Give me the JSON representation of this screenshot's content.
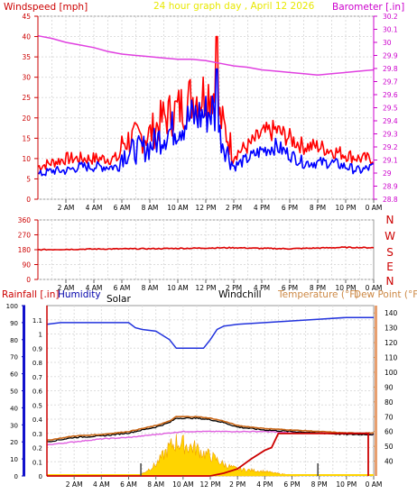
{
  "header": {
    "title": "24 hour graph day , April 12 2026",
    "left_label": "Windspeed [mph]",
    "right_label": "Barometer [.in]"
  },
  "direction_panel": {
    "letters": [
      "N",
      "W",
      "S",
      "E",
      "N"
    ]
  },
  "bottom_header": {
    "rainfall_label": "Rainfall [.in]",
    "humidity_label": "Humidity",
    "solar_label": "Solar",
    "windchill_label": "Windchill",
    "temperature_label": "Temperature (°F)",
    "dewpoint_label": "Dew Point (°F)"
  },
  "colors": {
    "windspeed": "#ff0000",
    "windgust": "#0000ff",
    "barometer": "#e040e0",
    "direction": "#dd0000",
    "humidity": "#2233dd",
    "rain": "#cc0000",
    "temperature": "#c86414",
    "dewpoint": "#e060e0",
    "windchill": "#000000",
    "solar": "#ffd400",
    "header_title": "#e8e800",
    "left_axis": "#cc0000",
    "right_axis": "#cc00cc",
    "humidity_label": "#0000aa",
    "temp_label": "#cc8844",
    "dew_label": "#cc8844"
  },
  "chart_data": [
    {
      "type": "line",
      "x_ticks": [
        "2 AM",
        "4 AM",
        "6 AM",
        "8 AM",
        "10 AM",
        "12 PM",
        "2 PM",
        "4 PM",
        "6 PM",
        "8 PM",
        "10 PM",
        "0 AM"
      ],
      "x_range_hours": [
        0,
        24
      ],
      "left_axis": {
        "ticks": [
          "0",
          "5",
          "10",
          "15",
          "20",
          "25",
          "30",
          "35",
          "40",
          "45"
        ],
        "ylim": [
          0,
          45
        ]
      },
      "right_axis": {
        "ticks": [
          "28.8",
          "28.9",
          "29",
          "29.1",
          "29.2",
          "29.3",
          "29.4",
          "29.5",
          "29.6",
          "29.7",
          "29.8",
          "29.9",
          "30",
          "30.1",
          "30.2"
        ],
        "ylim": [
          28.8,
          30.2
        ]
      },
      "grid": true,
      "series": [
        {
          "name": "Windspeed [mph]",
          "color": "#ff0000",
          "axis": "left",
          "x": [
            0,
            1,
            2,
            3,
            4,
            5,
            5.8,
            6,
            7,
            8,
            9,
            10,
            11,
            12,
            12.5,
            13,
            13.5,
            14,
            15,
            16,
            17,
            18,
            19,
            20,
            21,
            22,
            23,
            24
          ],
          "y": [
            8,
            9,
            10,
            10,
            10,
            10,
            10,
            14,
            15,
            16,
            20,
            22,
            25,
            26,
            27,
            20,
            16,
            11,
            13,
            16,
            17,
            15,
            13,
            13,
            12,
            11,
            10,
            10
          ]
        },
        {
          "name": "Gust",
          "color": "#0000ff",
          "axis": "left",
          "x": [
            0,
            1,
            2,
            3,
            4,
            5,
            5.8,
            6,
            7,
            8,
            9,
            10,
            11,
            12,
            12.5,
            13,
            13.5,
            14,
            15,
            16,
            17,
            18,
            19,
            20,
            21,
            22,
            23,
            24
          ],
          "y": [
            6,
            7,
            7,
            8,
            8,
            8,
            8,
            11,
            12,
            13,
            16,
            18,
            20,
            21,
            22,
            16,
            12,
            8,
            10,
            12,
            13,
            11,
            9,
            9,
            9,
            8,
            7,
            8
          ]
        },
        {
          "name": "Barometer [.in]",
          "color": "#e040e0",
          "axis": "right",
          "x": [
            0,
            1,
            2,
            3,
            4,
            5,
            6,
            7,
            8,
            9,
            10,
            11,
            12,
            13,
            14,
            15,
            16,
            17,
            18,
            19,
            20,
            21,
            22,
            23,
            24
          ],
          "y": [
            30.05,
            30.03,
            30.0,
            29.98,
            29.96,
            29.93,
            29.91,
            29.9,
            29.89,
            29.88,
            29.87,
            29.87,
            29.86,
            29.84,
            29.82,
            29.81,
            29.79,
            29.78,
            29.77,
            29.76,
            29.75,
            29.76,
            29.77,
            29.78,
            29.79
          ]
        }
      ]
    },
    {
      "type": "line",
      "x_ticks": [
        "2 AM",
        "4 AM",
        "6 AM",
        "8 AM",
        "10 AM",
        "12 PM",
        "2 PM",
        "4 PM",
        "6 PM",
        "8 PM",
        "10 PM",
        "0 AM"
      ],
      "x_range_hours": [
        0,
        24
      ],
      "left_axis": {
        "ticks": [
          "0",
          "90",
          "180",
          "270",
          "360"
        ],
        "ylim": [
          0,
          360
        ]
      },
      "right_labels": [
        "N",
        "W",
        "S",
        "E",
        "N"
      ],
      "grid": true,
      "series": [
        {
          "name": "Wind direction",
          "color": "#dd0000",
          "x": [
            0,
            2,
            4,
            6,
            8,
            10,
            12,
            14,
            16,
            18,
            20,
            22,
            24
          ],
          "y": [
            180,
            182,
            184,
            185,
            186,
            188,
            190,
            192,
            188,
            186,
            190,
            194,
            192
          ]
        }
      ]
    },
    {
      "type": "line",
      "x_ticks": [
        "2 AM",
        "4 AM",
        "6 AM",
        "8 AM",
        "10 AM",
        "12 PM",
        "2 PM",
        "4 PM",
        "6 PM",
        "8 PM",
        "10 PM",
        "0 AM"
      ],
      "x_range_hours": [
        0,
        24
      ],
      "left_axis_outer": {
        "ticks": [
          "0",
          "0.1",
          "0.2",
          "0.3",
          "0.4",
          "0.5",
          "0.6",
          "0.7",
          "0.8",
          "0.9",
          "1",
          "1.1"
        ],
        "ylim": [
          0,
          1.2
        ]
      },
      "left_axis_inner": {
        "ticks": [
          "0",
          "10",
          "20",
          "30",
          "40",
          "50",
          "60",
          "70",
          "80",
          "90",
          "100"
        ],
        "ylim": [
          0,
          100
        ]
      },
      "right_axis": {
        "ticks": [
          "40",
          "50",
          "60",
          "70",
          "80",
          "90",
          "100",
          "110",
          "120",
          "130",
          "140"
        ],
        "ylim": [
          30,
          145
        ]
      },
      "grid": true,
      "series": [
        {
          "name": "Humidity",
          "color": "#2233dd",
          "axis": "left_inner",
          "x": [
            0,
            1,
            2,
            3,
            4,
            5,
            6,
            6.5,
            7,
            8,
            9,
            9.5,
            10,
            11,
            11.5,
            12,
            12.5,
            13,
            14,
            16,
            18,
            20,
            22,
            24
          ],
          "y": [
            89,
            90,
            90,
            90,
            90,
            90,
            90,
            87,
            86,
            85,
            80,
            75,
            75,
            75,
            75,
            80,
            86,
            88,
            89,
            90,
            91,
            92,
            93,
            93
          ]
        },
        {
          "name": "Rainfall [.in]",
          "color": "#cc0000",
          "axis": "left_outer",
          "x": [
            0,
            12,
            13,
            14,
            15,
            16,
            16.5,
            17,
            18,
            20,
            22,
            23.6,
            23.6
          ],
          "y": [
            0,
            0,
            0.02,
            0.05,
            0.12,
            0.18,
            0.2,
            0.3,
            0.3,
            0.3,
            0.3,
            0.3,
            0
          ]
        },
        {
          "name": "Temperature (°F)",
          "color": "#c86414",
          "axis": "right",
          "x": [
            0,
            2,
            4,
            6,
            7,
            8,
            9,
            9.5,
            10,
            11,
            12,
            13,
            14,
            16,
            18,
            20,
            22,
            24
          ],
          "y": [
            54,
            57,
            58,
            60,
            62,
            64,
            67,
            70,
            70,
            70,
            69,
            67,
            64,
            62,
            61,
            60,
            59,
            59
          ]
        },
        {
          "name": "Dew Point (°F)",
          "color": "#e060e0",
          "axis": "right",
          "x": [
            0,
            2,
            4,
            6,
            8,
            10,
            12,
            14,
            16,
            18,
            20,
            22,
            24
          ],
          "y": [
            51,
            53,
            55,
            56,
            58,
            60,
            60,
            60,
            60,
            59,
            59,
            59,
            58
          ]
        },
        {
          "name": "Windchill",
          "color": "#000000",
          "axis": "right",
          "x": [
            0,
            2,
            4,
            6,
            7,
            8,
            9,
            9.5,
            10,
            11,
            12,
            13,
            14,
            16,
            18,
            20,
            22,
            24
          ],
          "y": [
            53,
            56,
            57,
            59,
            61,
            63,
            66,
            69,
            69,
            69,
            68,
            66,
            63,
            61,
            60,
            59,
            58,
            58
          ]
        },
        {
          "name": "Solar",
          "color": "#ffd400",
          "axis": "left_outer",
          "x": [
            6.5,
            7,
            8,
            9,
            9.5,
            10,
            10.5,
            11,
            11.5,
            12,
            12.5,
            13,
            13.5,
            14,
            15,
            16,
            17,
            18,
            18.5
          ],
          "y": [
            0.0,
            0.02,
            0.1,
            0.25,
            0.3,
            0.28,
            0.26,
            0.24,
            0.2,
            0.18,
            0.14,
            0.1,
            0.08,
            0.06,
            0.05,
            0.04,
            0.02,
            0.01,
            0.0
          ]
        }
      ]
    }
  ]
}
